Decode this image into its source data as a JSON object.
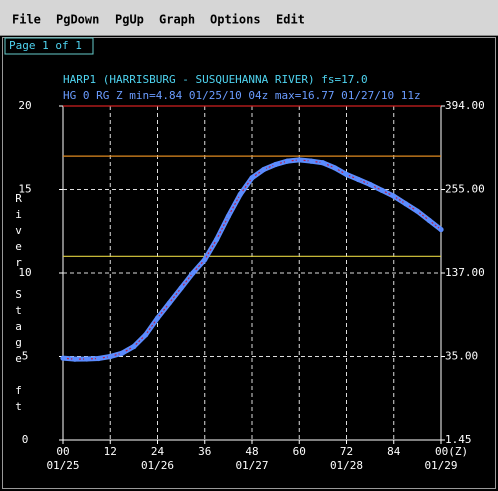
{
  "menu": [
    "File",
    "PgDown",
    "PgUp",
    "Graph",
    "Options",
    "Edit"
  ],
  "page_label": "Page 1 of 1",
  "chart_data": {
    "type": "line",
    "title": "HARP1 (HARRISBURG - SUSQUEHANNA RIVER) fs=17.0",
    "subtitle": "HG 0 RG Z min=4.84 01/25/10 04z max=16.77 01/27/10 11z",
    "y_label": "River Stage ft",
    "x": [
      0,
      3,
      6,
      9,
      12,
      15,
      18,
      21,
      24,
      27,
      30,
      33,
      36,
      39,
      42,
      45,
      48,
      51,
      54,
      57,
      60,
      63,
      66,
      69,
      72,
      75,
      78,
      81,
      84,
      87,
      90,
      93,
      96
    ],
    "series": [
      {
        "name": "HG 0 RG Z",
        "color": "#5b8cff",
        "line_color": "#c0204a",
        "values": [
          4.9,
          4.84,
          4.85,
          4.88,
          5.0,
          5.2,
          5.6,
          6.3,
          7.3,
          8.2,
          9.1,
          10.0,
          10.8,
          12.0,
          13.4,
          14.7,
          15.7,
          16.2,
          16.5,
          16.7,
          16.77,
          16.7,
          16.6,
          16.3,
          15.9,
          15.6,
          15.3,
          14.95,
          14.6,
          14.15,
          13.7,
          13.15,
          12.6
        ]
      }
    ],
    "xlim": [
      0,
      96
    ],
    "xticks": [
      {
        "value": 0,
        "label": "00"
      },
      12,
      24,
      36,
      48,
      60,
      72,
      84,
      {
        "value": 96,
        "label": "00(Z)"
      }
    ],
    "date_labels": [
      {
        "value": 0,
        "label": "01/25"
      },
      {
        "value": 24,
        "label": "01/26"
      },
      {
        "value": 48,
        "label": "01/27"
      },
      {
        "value": 72,
        "label": "01/28"
      },
      {
        "value": 96,
        "label": "01/29"
      }
    ],
    "ylim": [
      0,
      20
    ],
    "yticks": [
      0,
      5,
      10,
      15,
      20
    ],
    "flow_labels": [
      "1.45",
      "35.00",
      "137.00",
      "255.00",
      "394.00"
    ],
    "threshold_lines": [
      {
        "value": 20,
        "color": "#d02020"
      },
      {
        "value": 17,
        "color": "#e08a20"
      },
      {
        "value": 11,
        "color": "#e0d040"
      }
    ],
    "grid": true
  }
}
